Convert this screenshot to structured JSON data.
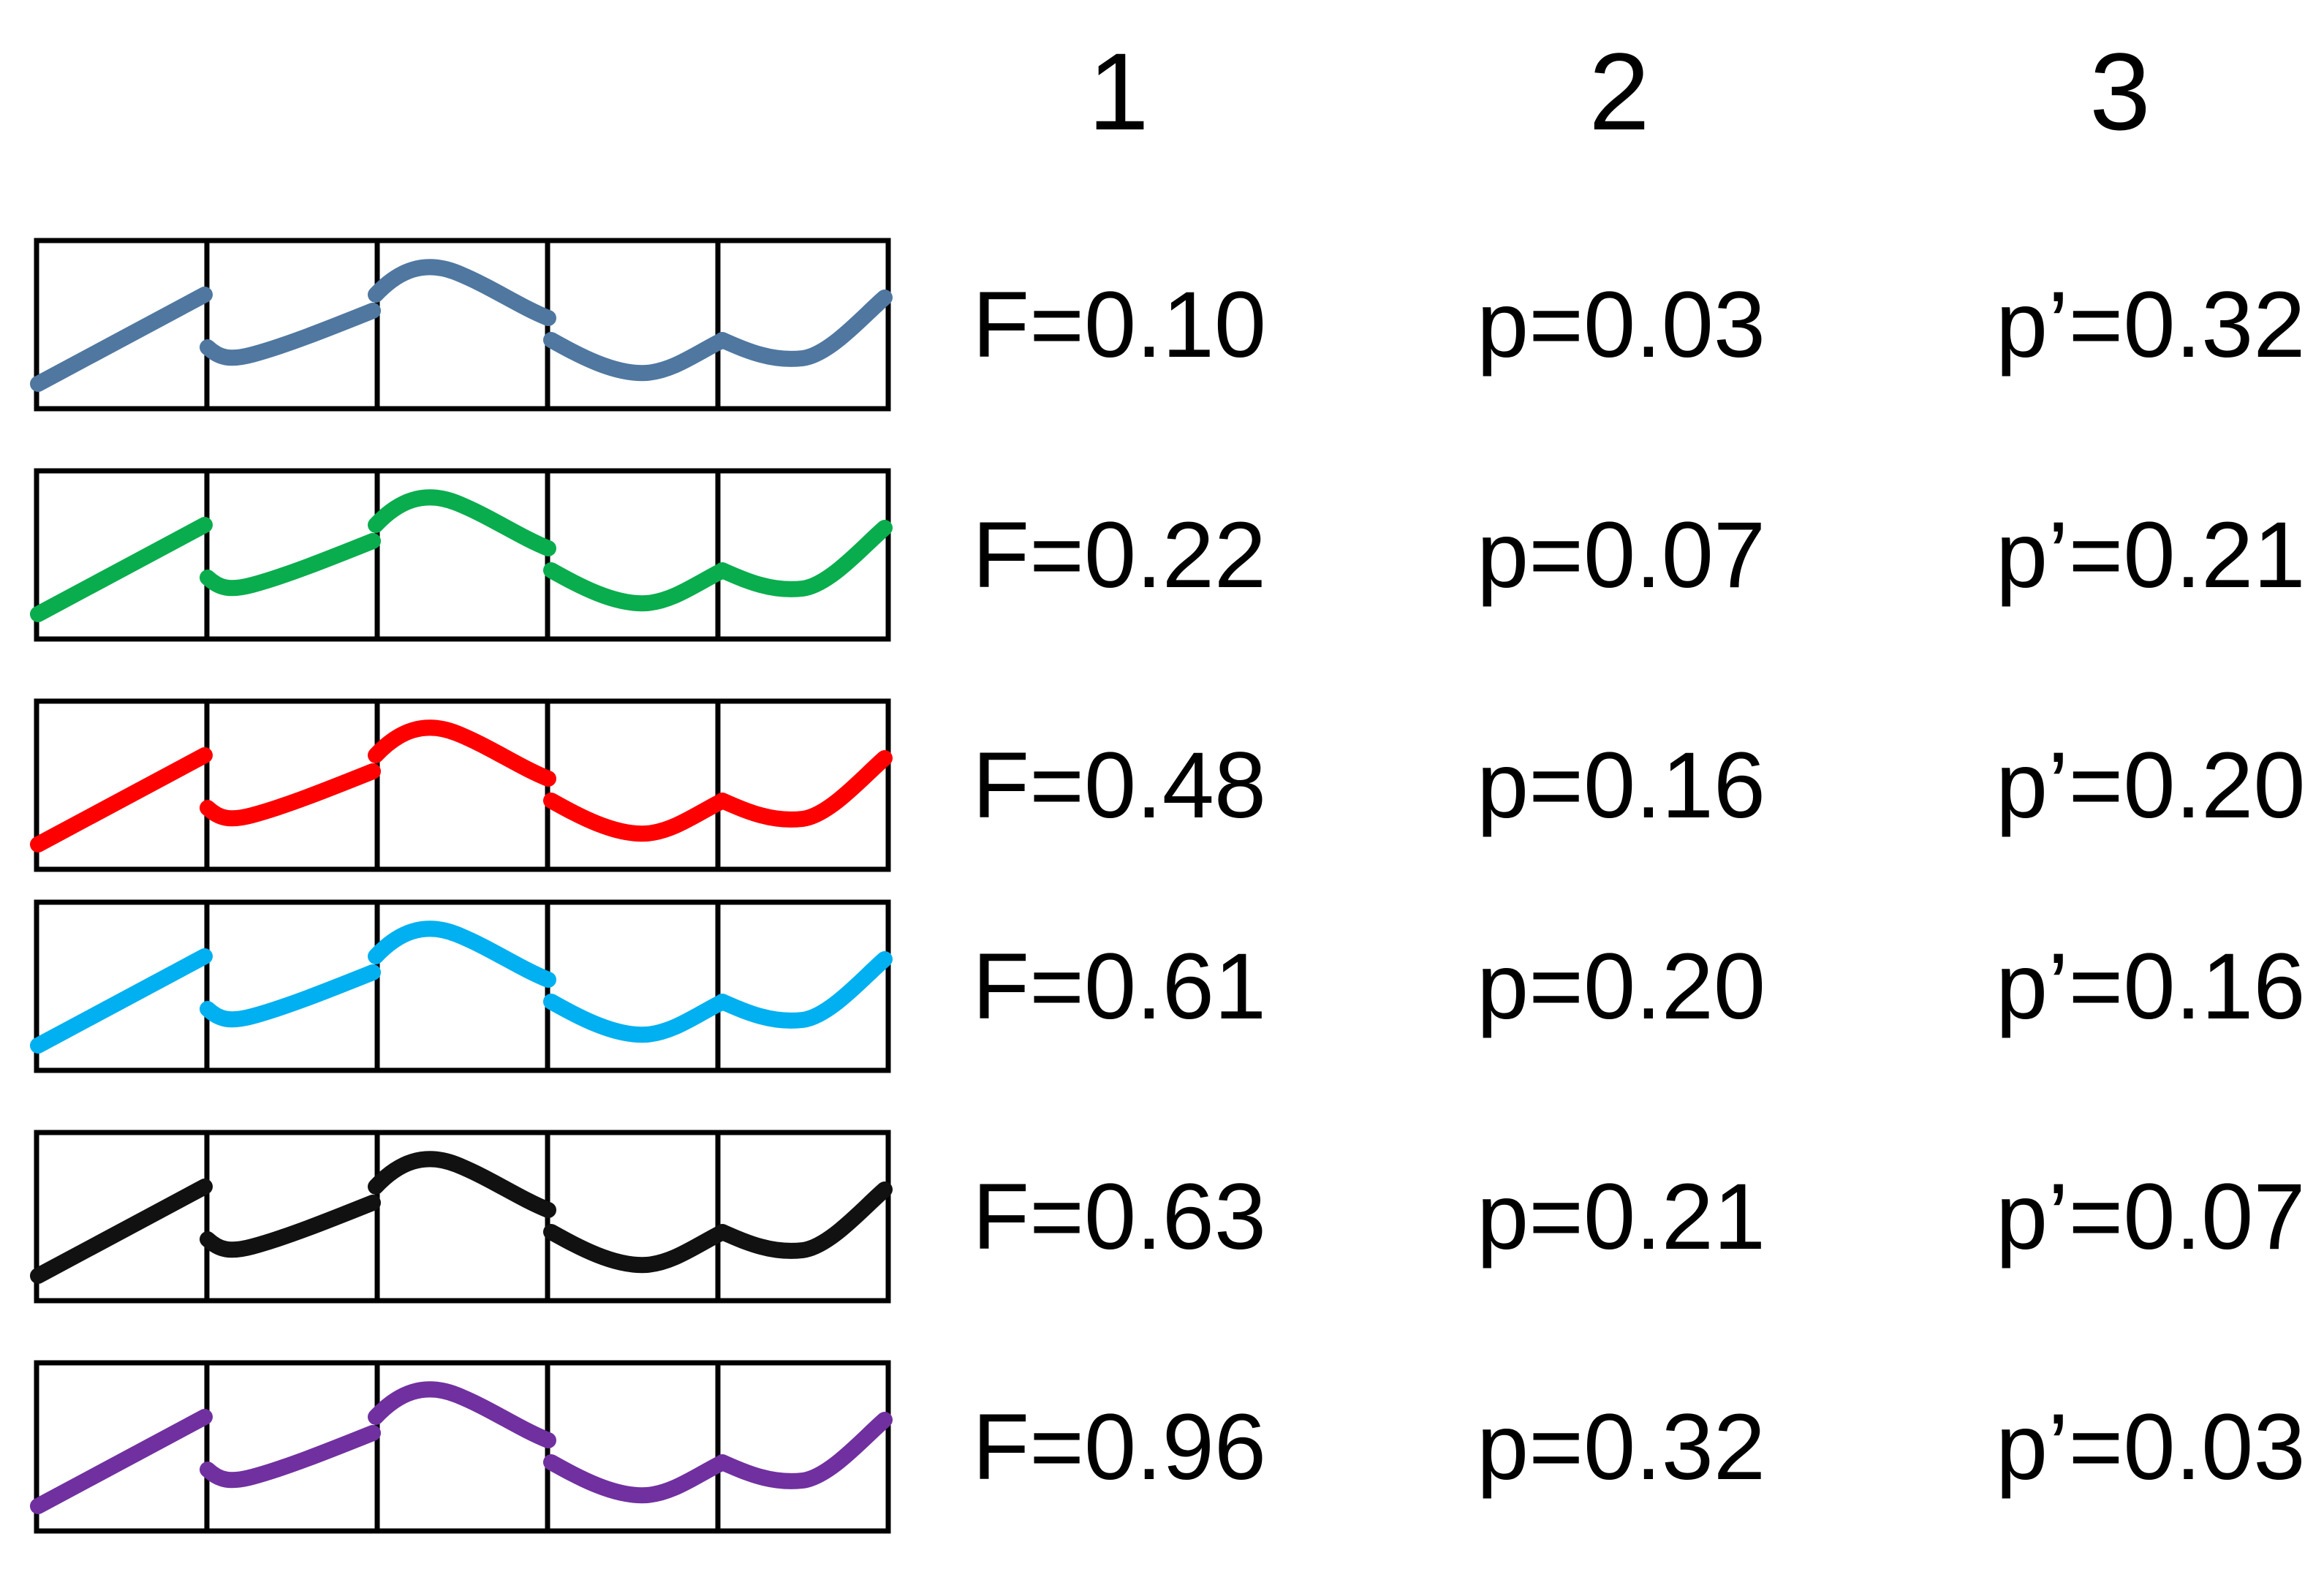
{
  "column_headers": [
    "1",
    "2",
    "3"
  ],
  "rows": [
    {
      "color": "#4f77a0",
      "F": "F=0.10",
      "p": "p=0.03",
      "p_prime": "p’=0.32"
    },
    {
      "color": "#09ad4d",
      "F": "F=0.22",
      "p": "p=0.07",
      "p_prime": "p’=0.21"
    },
    {
      "color": "#ff0000",
      "F": "F=0.48",
      "p": "p=0.16",
      "p_prime": "p’=0.20"
    },
    {
      "color": "#00b0f0",
      "F": "F=0.61",
      "p": "p=0.20",
      "p_prime": "p’=0.16"
    },
    {
      "color": "#111111",
      "F": "F=0.63",
      "p": "p=0.21",
      "p_prime": "p’=0.07"
    },
    {
      "color": "#7030a0",
      "F": "F=0.96",
      "p": "p=0.32",
      "p_prime": "p’=0.03"
    }
  ]
}
